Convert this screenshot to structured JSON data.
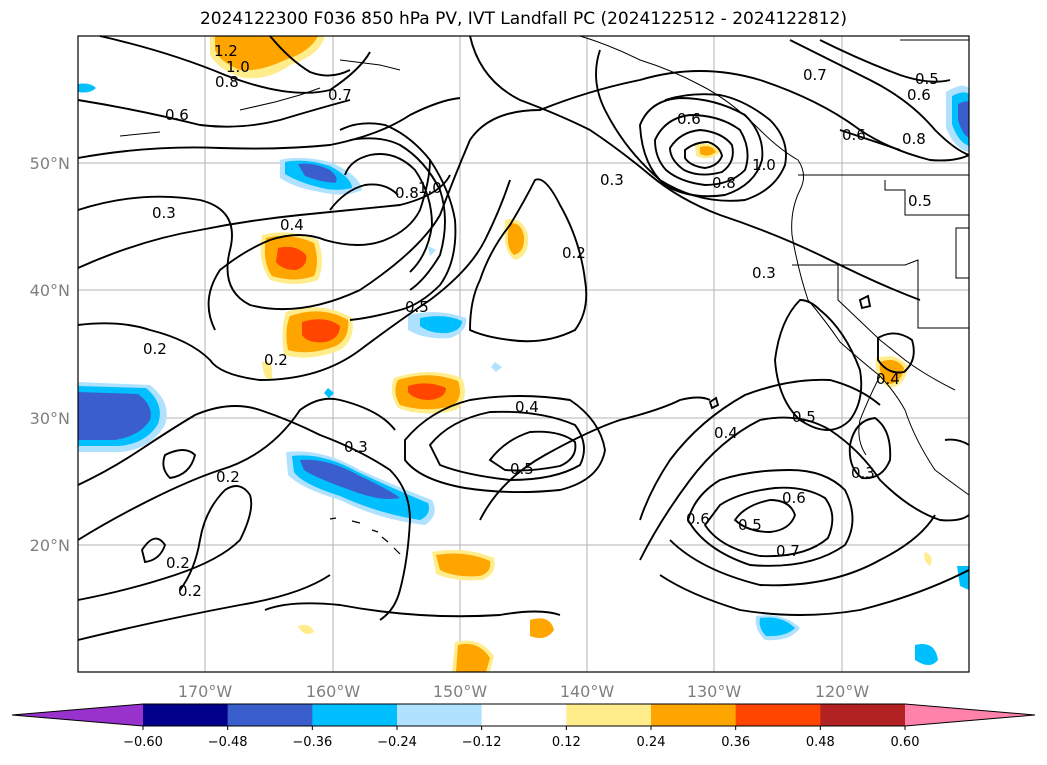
{
  "title": "2024122300 F036 850 hPa PV, IVT Landfall PC (2024122512 - 2024122812)",
  "map": {
    "lon_ticks": [
      "170°W",
      "160°W",
      "150°W",
      "140°W",
      "130°W",
      "120°W"
    ],
    "lat_ticks": [
      "50°N",
      "40°N",
      "30°N",
      "20°N"
    ],
    "contour_labels": [
      "1.2",
      "1.0",
      "0.8",
      "0.7",
      "0.6",
      "0.3",
      "0.4",
      "0.2",
      "0.8",
      "1.0",
      "0.5",
      "0.2",
      "0.3",
      "0.2",
      "0.3",
      "0.4",
      "0.5",
      "0.2",
      "0.2",
      "0.2",
      "0.4",
      "0.5",
      "0.6",
      "0.5",
      "0.6",
      "0.7",
      "0.3",
      "0.3",
      "0.6",
      "0.8",
      "1.0",
      "0.7",
      "0.5",
      "0.6",
      "0.8",
      "0.6",
      "0.5",
      "0.4"
    ]
  },
  "colorbar": {
    "ticks": [
      "−0.60",
      "−0.48",
      "−0.36",
      "−0.24",
      "−0.12",
      "0.12",
      "0.24",
      "0.36",
      "0.48",
      "0.60"
    ],
    "colors": [
      "#9932cc",
      "#00008b",
      "#3a5fcd",
      "#00bfff",
      "#b0e2ff",
      "#ffffff",
      "#ffec8b",
      "#ffa500",
      "#ff4500",
      "#b22222",
      "#ff82ab"
    ]
  }
}
